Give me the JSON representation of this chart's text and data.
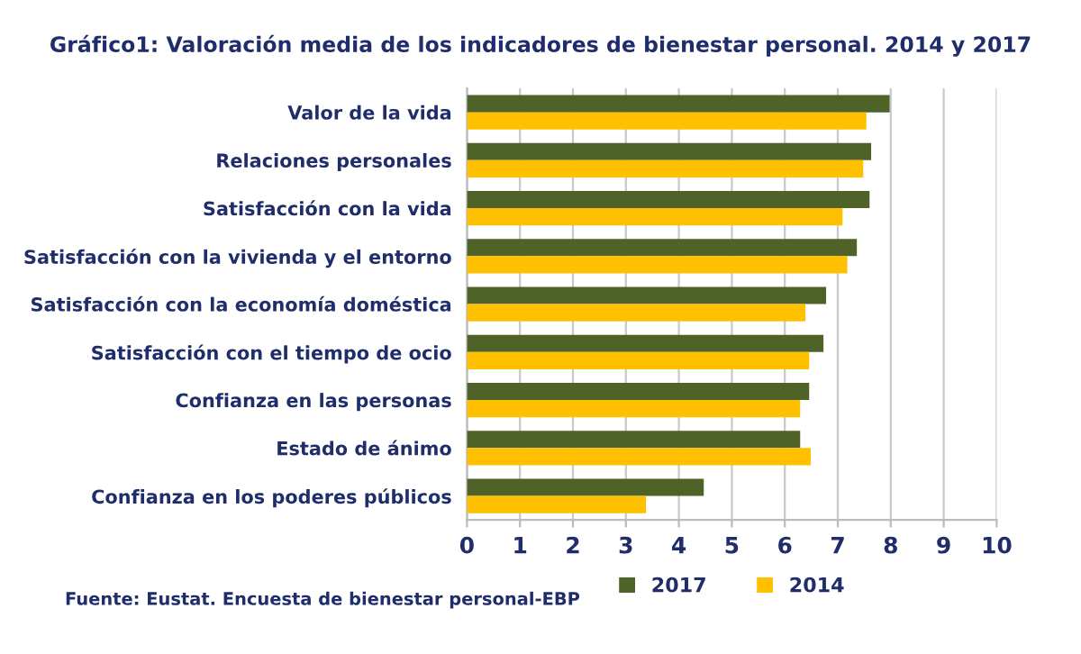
{
  "chart_data": {
    "type": "bar",
    "orientation": "horizontal",
    "title": "Gráfico1: Valoración media de los indicadores de bienestar personal. 2014 y 2017",
    "categories": [
      "Valor de la vida",
      "Relaciones personales",
      "Satisfacción con la vida",
      "Satisfacción con la vivienda y el entorno",
      "Satisfacción con la economía doméstica",
      "Satisfacción con el tiempo de ocio",
      "Confianza en las personas",
      "Estado de ánimo",
      "Confianza en los poderes públicos"
    ],
    "series": [
      {
        "name": "2017",
        "color": "#4f6228",
        "values": [
          7.98,
          7.63,
          7.6,
          7.36,
          6.78,
          6.73,
          6.46,
          6.29,
          4.47
        ]
      },
      {
        "name": "2014",
        "color": "#ffc000",
        "values": [
          7.54,
          7.48,
          7.09,
          7.18,
          6.39,
          6.46,
          6.29,
          6.49,
          3.38
        ]
      }
    ],
    "xlim": [
      0,
      10
    ],
    "xticks": [
      0,
      1,
      2,
      3,
      4,
      5,
      6,
      7,
      8,
      9,
      10
    ],
    "grid": "x",
    "legend": "bottom",
    "annotations": [
      "Fuente: Eustat. Encuesta de bienestar personal-EBP"
    ]
  }
}
